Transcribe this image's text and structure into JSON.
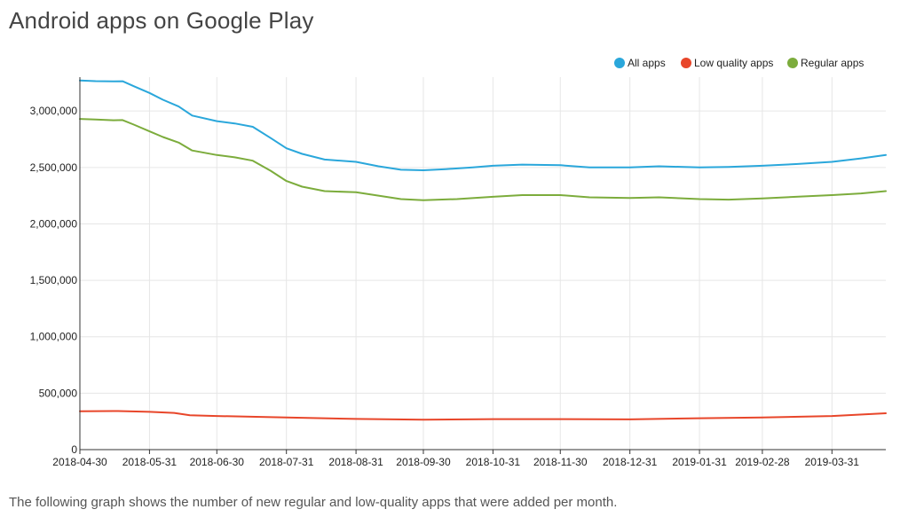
{
  "page": {
    "title": "Android apps on Google Play",
    "footnote": "The following graph shows the number of new regular and low-quality apps that were added per month."
  },
  "colors": {
    "all_apps": "#2aa7db",
    "low_quality": "#e8462a",
    "regular": "#7cac3c",
    "grid": "#e6e6e6",
    "axis": "#333333"
  },
  "chart_data": {
    "type": "line",
    "title": "",
    "xlabel": "",
    "ylabel": "",
    "ylim": [
      0,
      3300000
    ],
    "y_ticks": [
      0,
      500000,
      1000000,
      1500000,
      2000000,
      2500000,
      3000000
    ],
    "y_tick_labels": [
      "0",
      "500,000",
      "1,000,000",
      "1,500,000",
      "2,000,000",
      "2,500,000",
      "3,000,000"
    ],
    "x_range": [
      "2018-04-30",
      "2019-04-24"
    ],
    "x_ticks": [
      "2018-04-30",
      "2018-05-31",
      "2018-06-30",
      "2018-07-31",
      "2018-08-31",
      "2018-09-30",
      "2018-10-31",
      "2018-11-30",
      "2018-12-31",
      "2019-01-31",
      "2019-02-28",
      "2019-03-31"
    ],
    "grid": true,
    "legend_position": "top-right",
    "series": [
      {
        "name": "All apps",
        "color_key": "all_apps",
        "points": [
          [
            "2018-04-30",
            3270000
          ],
          [
            "2018-05-07",
            3265000
          ],
          [
            "2018-05-15",
            3262000
          ],
          [
            "2018-05-19",
            3264000
          ],
          [
            "2018-05-24",
            3220000
          ],
          [
            "2018-05-31",
            3160000
          ],
          [
            "2018-06-06",
            3100000
          ],
          [
            "2018-06-13",
            3040000
          ],
          [
            "2018-06-19",
            2960000
          ],
          [
            "2018-06-30",
            2910000
          ],
          [
            "2018-07-08",
            2890000
          ],
          [
            "2018-07-16",
            2860000
          ],
          [
            "2018-07-24",
            2760000
          ],
          [
            "2018-07-31",
            2670000
          ],
          [
            "2018-08-07",
            2620000
          ],
          [
            "2018-08-17",
            2570000
          ],
          [
            "2018-08-31",
            2550000
          ],
          [
            "2018-09-10",
            2510000
          ],
          [
            "2018-09-20",
            2480000
          ],
          [
            "2018-09-30",
            2475000
          ],
          [
            "2018-10-10",
            2485000
          ],
          [
            "2018-10-22",
            2500000
          ],
          [
            "2018-10-31",
            2515000
          ],
          [
            "2018-11-13",
            2525000
          ],
          [
            "2018-11-30",
            2520000
          ],
          [
            "2018-12-13",
            2500000
          ],
          [
            "2018-12-31",
            2500000
          ],
          [
            "2019-01-13",
            2510000
          ],
          [
            "2019-01-31",
            2500000
          ],
          [
            "2019-02-13",
            2505000
          ],
          [
            "2019-02-28",
            2515000
          ],
          [
            "2019-03-15",
            2530000
          ],
          [
            "2019-03-31",
            2550000
          ],
          [
            "2019-04-13",
            2580000
          ],
          [
            "2019-04-24",
            2610000
          ]
        ]
      },
      {
        "name": "Low quality apps",
        "color_key": "low_quality",
        "points": [
          [
            "2018-04-30",
            340000
          ],
          [
            "2018-05-17",
            342000
          ],
          [
            "2018-05-31",
            335000
          ],
          [
            "2018-06-11",
            325000
          ],
          [
            "2018-06-18",
            305000
          ],
          [
            "2018-06-30",
            298000
          ],
          [
            "2018-07-31",
            285000
          ],
          [
            "2018-08-31",
            272000
          ],
          [
            "2018-09-30",
            265000
          ],
          [
            "2018-10-31",
            270000
          ],
          [
            "2018-11-30",
            270000
          ],
          [
            "2018-12-31",
            268000
          ],
          [
            "2019-01-31",
            278000
          ],
          [
            "2019-02-28",
            285000
          ],
          [
            "2019-03-31",
            298000
          ],
          [
            "2019-04-24",
            322000
          ]
        ]
      },
      {
        "name": "Regular apps",
        "color_key": "regular",
        "points": [
          [
            "2018-04-30",
            2930000
          ],
          [
            "2018-05-07",
            2925000
          ],
          [
            "2018-05-15",
            2918000
          ],
          [
            "2018-05-19",
            2920000
          ],
          [
            "2018-05-24",
            2880000
          ],
          [
            "2018-05-31",
            2820000
          ],
          [
            "2018-06-06",
            2770000
          ],
          [
            "2018-06-13",
            2720000
          ],
          [
            "2018-06-19",
            2650000
          ],
          [
            "2018-06-30",
            2610000
          ],
          [
            "2018-07-08",
            2590000
          ],
          [
            "2018-07-16",
            2560000
          ],
          [
            "2018-07-24",
            2470000
          ],
          [
            "2018-07-31",
            2380000
          ],
          [
            "2018-08-07",
            2330000
          ],
          [
            "2018-08-17",
            2290000
          ],
          [
            "2018-08-31",
            2280000
          ],
          [
            "2018-09-10",
            2250000
          ],
          [
            "2018-09-20",
            2220000
          ],
          [
            "2018-09-30",
            2210000
          ],
          [
            "2018-10-15",
            2220000
          ],
          [
            "2018-10-31",
            2240000
          ],
          [
            "2018-11-13",
            2255000
          ],
          [
            "2018-11-30",
            2255000
          ],
          [
            "2018-12-13",
            2235000
          ],
          [
            "2018-12-31",
            2230000
          ],
          [
            "2019-01-13",
            2235000
          ],
          [
            "2019-01-31",
            2220000
          ],
          [
            "2019-02-13",
            2215000
          ],
          [
            "2019-02-28",
            2225000
          ],
          [
            "2019-03-15",
            2240000
          ],
          [
            "2019-03-31",
            2255000
          ],
          [
            "2019-04-13",
            2270000
          ],
          [
            "2019-04-24",
            2290000
          ]
        ]
      }
    ]
  }
}
